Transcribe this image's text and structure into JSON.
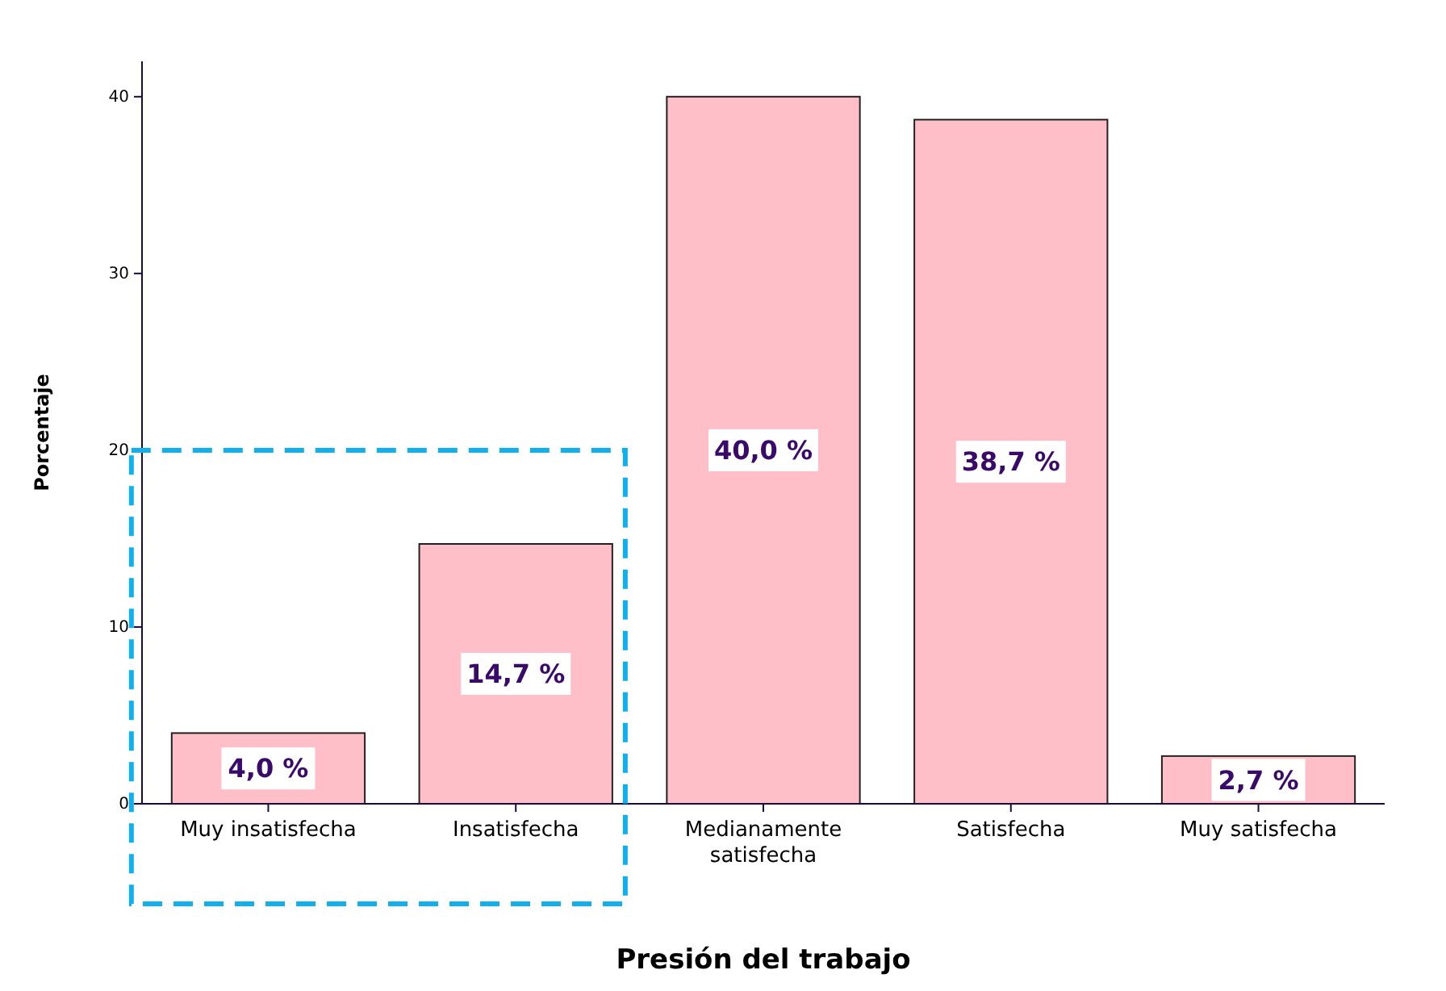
{
  "chart_data": {
    "type": "bar",
    "xlabel": "Presión del trabajo",
    "ylabel": "Porcentaje",
    "categories": [
      "Muy insatisfecha",
      "Insatisfecha",
      "Medianamente satisfecha",
      "Satisfecha",
      "Muy satisfecha"
    ],
    "values": [
      4.0,
      14.7,
      40.0,
      38.7,
      2.7
    ],
    "value_labels": [
      "4,0 %",
      "14,7 %",
      "40,0 %",
      "38,7 %",
      "2,7 %"
    ],
    "color": "#ffbfc8",
    "ylim": [
      0,
      42
    ],
    "yticks": [
      0,
      10,
      20,
      30,
      40
    ]
  }
}
